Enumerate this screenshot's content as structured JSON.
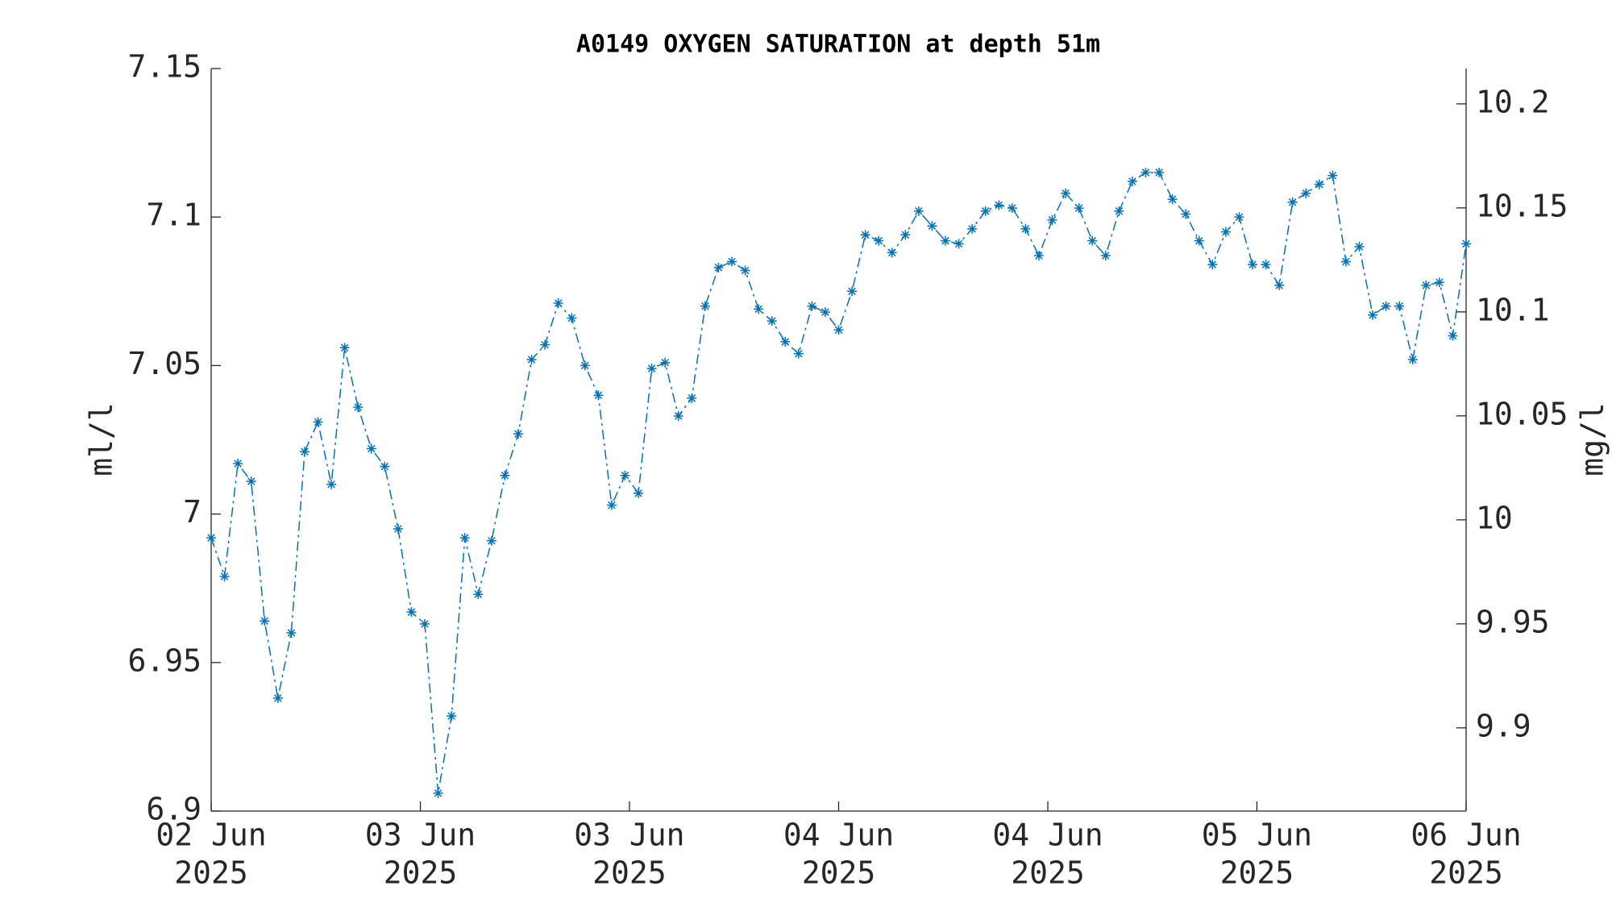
{
  "chart_data": {
    "type": "line",
    "title": "A0149 OXYGEN SATURATION at depth 51m",
    "ylabel": "ml/l",
    "y2label": "mg/l",
    "x": [
      0,
      1,
      2,
      3,
      4,
      5,
      6,
      7,
      8,
      9,
      10,
      11,
      12,
      13,
      14,
      15,
      16,
      17,
      18,
      19,
      20,
      21,
      22,
      23,
      24,
      25,
      26,
      27,
      28,
      29,
      30,
      31,
      32,
      33,
      34,
      35,
      36,
      37,
      38,
      39,
      40,
      41,
      42,
      43,
      44,
      45,
      46,
      47,
      48,
      49,
      50,
      51,
      52,
      53,
      54,
      55,
      56,
      57,
      58,
      59,
      60,
      61,
      62,
      63,
      64,
      65,
      66,
      67,
      68,
      69,
      70,
      71,
      72,
      73,
      74,
      75,
      76,
      77,
      78,
      79,
      80,
      81,
      82,
      83,
      84,
      85,
      86,
      87,
      88,
      89,
      90,
      91,
      92,
      93,
      94
    ],
    "series": [
      {
        "color": "#0072bd",
        "values": [
          6.992,
          6.979,
          7.017,
          7.011,
          6.964,
          6.938,
          6.96,
          7.021,
          7.031,
          7.01,
          7.056,
          7.036,
          7.022,
          7.016,
          6.995,
          6.967,
          6.963,
          6.906,
          6.932,
          6.992,
          6.973,
          6.991,
          7.013,
          7.027,
          7.052,
          7.057,
          7.071,
          7.066,
          7.05,
          7.04,
          7.003,
          7.013,
          7.007,
          7.049,
          7.051,
          7.033,
          7.039,
          7.07,
          7.083,
          7.085,
          7.082,
          7.069,
          7.065,
          7.058,
          7.054,
          7.07,
          7.068,
          7.062,
          7.075,
          7.094,
          7.092,
          7.088,
          7.094,
          7.102,
          7.097,
          7.092,
          7.091,
          7.096,
          7.102,
          7.104,
          7.103,
          7.096,
          7.087,
          7.099,
          7.108,
          7.103,
          7.092,
          7.087,
          7.102,
          7.112,
          7.115,
          7.115,
          7.106,
          7.101,
          7.092,
          7.084,
          7.095,
          7.1,
          7.084,
          7.084,
          7.077,
          7.105,
          7.108,
          7.111,
          7.114,
          7.085,
          7.09,
          7.067,
          7.07,
          7.07,
          7.052,
          7.077,
          7.078,
          7.06,
          7.091
        ]
      }
    ],
    "xlim": [
      0,
      94
    ],
    "xticks": [
      {
        "value": 0,
        "label": [
          "02 Jun",
          "2025"
        ]
      },
      {
        "value": 15.67,
        "label": [
          "03 Jun",
          "2025"
        ]
      },
      {
        "value": 31.33,
        "label": [
          "03 Jun",
          "2025"
        ]
      },
      {
        "value": 47,
        "label": [
          "04 Jun",
          "2025"
        ]
      },
      {
        "value": 62.67,
        "label": [
          "04 Jun",
          "2025"
        ]
      },
      {
        "value": 78.33,
        "label": [
          "05 Jun",
          "2025"
        ]
      },
      {
        "value": 94,
        "label": [
          "06 Jun",
          "2025"
        ]
      }
    ],
    "ylim": [
      6.9,
      7.15
    ],
    "yticks": [
      6.9,
      6.95,
      7,
      7.05,
      7.1,
      7.15
    ],
    "y2lim": [
      9.86,
      10.217
    ],
    "y2ticks": [
      9.9,
      9.95,
      10,
      10.05,
      10.1,
      10.15,
      10.2
    ]
  }
}
